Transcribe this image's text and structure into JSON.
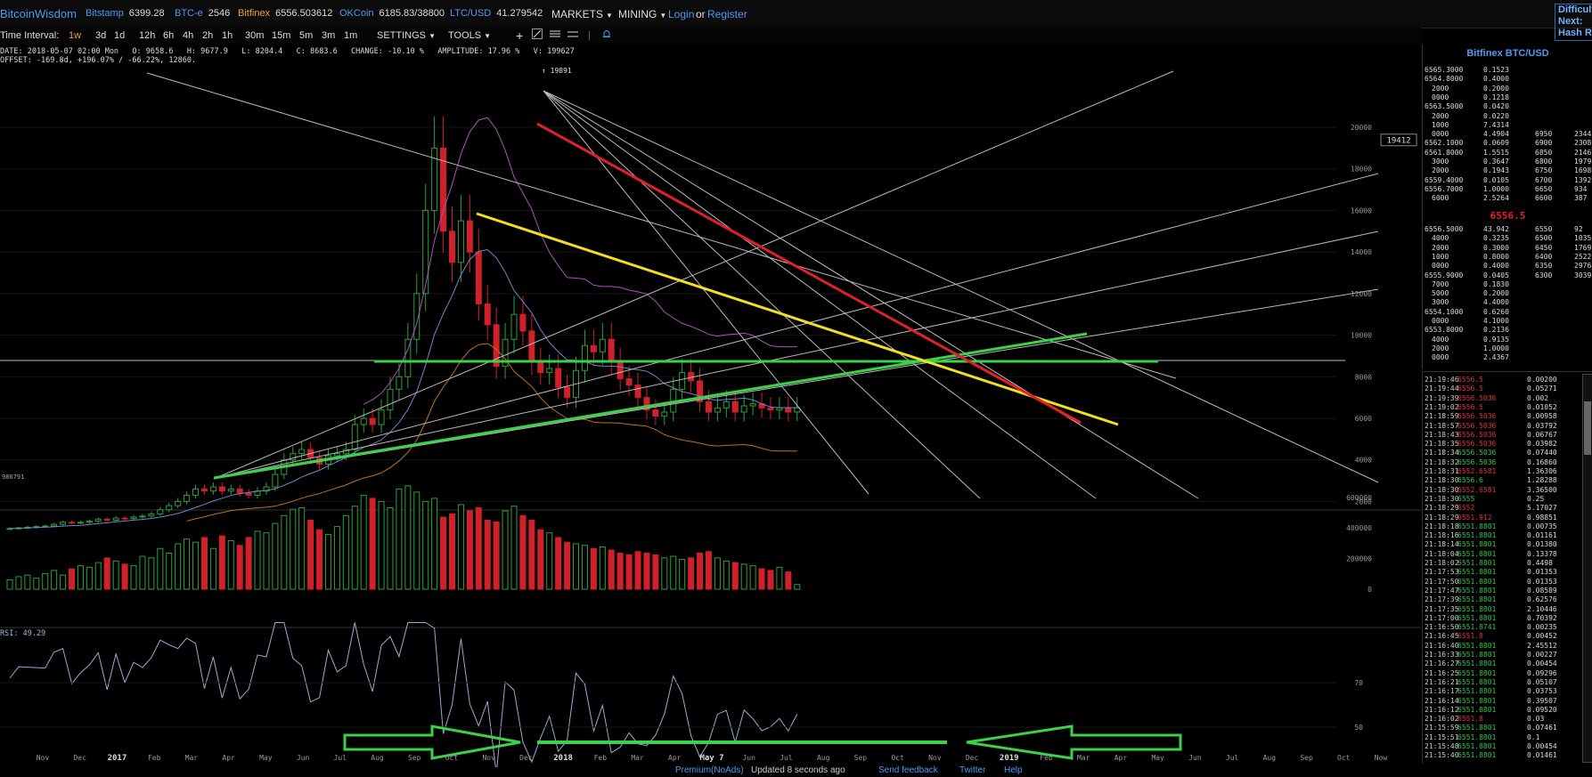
{
  "header": {
    "brand": "BitcoinWisdom",
    "tickers": [
      {
        "name": "Bitstamp",
        "value": "6399.28",
        "color": "blue"
      },
      {
        "name": "BTC-e",
        "value": "2546",
        "color": "blue"
      },
      {
        "name": "Bitfinex",
        "value": "6556.503612",
        "color": "orange"
      },
      {
        "name": "OKCoin",
        "value": "6185.83/38800",
        "color": "blue"
      },
      {
        "name": "LTC/USD",
        "value": "41.279542",
        "color": "blue"
      }
    ],
    "menus": [
      "MARKETS",
      "MINING"
    ],
    "login": "Login",
    "or": "or",
    "register": "Register",
    "difficulty": [
      "Difficulty",
      "Next:",
      "Hash Rate"
    ]
  },
  "toolbar": {
    "label": "Time Interval:",
    "intervals": [
      "1w",
      "3d",
      "1d",
      "12h",
      "6h",
      "4h",
      "2h",
      "1h",
      "30m",
      "15m",
      "5m",
      "3m",
      "1m"
    ],
    "active_interval": "1w",
    "settings": "SETTINGS",
    "tools": "TOOLS"
  },
  "ohlc": {
    "line1": "DATE: 2018-05-07 02:00 Mon   O: 9658.6   H: 9677.9   L: 8204.4   C: 8683.6   CHANGE: -10.10 %   AMPLITUDE: 17.96 %   V: 199627",
    "line2": "OFFSET: -169.8d, +196.07% / -66.22%, 12860."
  },
  "chart_data": {
    "type": "candlestick",
    "price_axis": {
      "ticks": [
        2000,
        4000,
        6000,
        8000,
        10000,
        12000,
        14000,
        16000,
        18000,
        20000
      ],
      "range": [
        0,
        20000
      ]
    },
    "peak_label": "19891",
    "cursor_price": "19412",
    "last_price_marker": "986791",
    "volume_axis": {
      "ticks": [
        0,
        200000,
        400000,
        600000
      ]
    },
    "rsi_label": "RSI: 49.29",
    "rsi_axis": {
      "ticks": [
        50,
        70
      ]
    },
    "time_labels": [
      "Nov",
      "Dec",
      "2017",
      "Feb",
      "Mar",
      "Apr",
      "May",
      "Jun",
      "Jul",
      "Aug",
      "Sep",
      "Oct",
      "Nov",
      "Dec",
      "2018",
      "Feb",
      "Mar",
      "Apr",
      "May 7",
      "Jun",
      "Jul",
      "Aug",
      "Sep",
      "Oct",
      "Nov",
      "Dec",
      "2019",
      "Feb",
      "Mar",
      "Apr",
      "May",
      "Jun",
      "Jul",
      "Aug",
      "Sep",
      "Oct",
      "Now"
    ],
    "weekly_closes": [
      700,
      730,
      760,
      790,
      820,
      900,
      1000,
      980,
      1000,
      1050,
      1150,
      1100,
      1200,
      1180,
      1250,
      1300,
      1400,
      1600,
      1800,
      2000,
      2300,
      2600,
      2500,
      2700,
      2500,
      2600,
      2400,
      2300,
      2500,
      2700,
      3300,
      4000,
      4300,
      4500,
      4100,
      3800,
      4200,
      4300,
      4500,
      5700,
      6000,
      5700,
      6400,
      7400,
      8000,
      9800,
      12000,
      16000,
      19000,
      15000,
      13500,
      15500,
      14000,
      11500,
      10500,
      8500,
      9800,
      11000,
      10200,
      8700,
      8200,
      8400,
      7500,
      7000,
      8300,
      9500,
      9200,
      9800,
      8700,
      7900,
      7600,
      7000,
      6400,
      6100,
      6300,
      7400,
      8200,
      7800,
      6800,
      6300,
      6500,
      6800,
      6300,
      6600,
      6700,
      6500,
      6400,
      6500,
      6300,
      6500
    ]
  },
  "orderbook": {
    "title": "Bitfinex BTC/USD",
    "asks": [
      [
        "6565.3000",
        "0.1523"
      ],
      [
        "6564.8000",
        "0.4000"
      ],
      [
        "2000",
        "0.2000"
      ],
      [
        "0000",
        "0.1218"
      ],
      [
        "6563.5000",
        "0.0420"
      ],
      [
        "2000",
        "0.0220"
      ],
      [
        "1000",
        "7.4314"
      ],
      [
        "0000",
        "4.4904"
      ],
      [
        "6562.1000",
        "0.0609"
      ],
      [
        "6561.8000",
        "1.5515"
      ],
      [
        "3000",
        "0.3647"
      ],
      [
        "2000",
        "0.1943"
      ],
      [
        "6559.4000",
        "0.0105"
      ],
      [
        "6556.7000",
        "1.0000"
      ],
      [
        "6000",
        "2.5264"
      ]
    ],
    "ask_depth": [
      [
        "6950",
        "2344"
      ],
      [
        "6900",
        "2308"
      ],
      [
        "6850",
        "2146"
      ],
      [
        "6800",
        "1979"
      ],
      [
        "6750",
        "1698"
      ],
      [
        "6700",
        "1392"
      ],
      [
        "6650",
        "934"
      ],
      [
        "6600",
        "387"
      ]
    ],
    "mid": "6556.5",
    "bids": [
      [
        "6556.5000",
        "43.942"
      ],
      [
        "4000",
        "0.3235"
      ],
      [
        "2000",
        "0.3000"
      ],
      [
        "1000",
        "0.8000"
      ],
      [
        "0000",
        "0.4000"
      ],
      [
        "6555.9000",
        "0.0405"
      ],
      [
        "7000",
        "0.1830"
      ],
      [
        "5000",
        "0.2000"
      ],
      [
        "3000",
        "4.4000"
      ],
      [
        "6554.1000",
        "0.6260"
      ],
      [
        "0000",
        "4.1000"
      ],
      [
        "6553.8000",
        "0.2136"
      ],
      [
        "4000",
        "0.9135"
      ],
      [
        "2000",
        "1.0000"
      ],
      [
        "0000",
        "2.4367"
      ]
    ],
    "bid_depth": [
      [
        "6550",
        "92"
      ],
      [
        "6500",
        "1035"
      ],
      [
        "6450",
        "1769"
      ],
      [
        "6400",
        "2522"
      ],
      [
        "6350",
        "2976"
      ],
      [
        "6300",
        "3039"
      ]
    ]
  },
  "trades": [
    [
      "21:19:46",
      "6556.5",
      "dn",
      "0.00200"
    ],
    [
      "21:19:44",
      "6556.5",
      "dn",
      "0.05271"
    ],
    [
      "21:19:39",
      "6556.5036",
      "dn",
      "0.002"
    ],
    [
      "21:19:02",
      "6556.5",
      "dn",
      "0.01052"
    ],
    [
      "21:18:59",
      "6556.5036",
      "dn",
      "0.00958"
    ],
    [
      "21:18:57",
      "6556.5036",
      "dn",
      "0.03792"
    ],
    [
      "21:18:43",
      "6556.5036",
      "dn",
      "0.06767"
    ],
    [
      "21:18:35",
      "6556.5036",
      "dn",
      "0.03982"
    ],
    [
      "21:18:34",
      "6556.5036",
      "up",
      "0.07440"
    ],
    [
      "21:18:32",
      "6556.5036",
      "up",
      "0.16860"
    ],
    [
      "21:18:31",
      "6552.6581",
      "dn",
      "1.36306"
    ],
    [
      "21:18:30",
      "6556.6",
      "up",
      "1.28288"
    ],
    [
      "21:18:30",
      "6552.6581",
      "dn",
      "3.36500"
    ],
    [
      "21:18:30",
      "6555",
      "up",
      "0.25"
    ],
    [
      "21:18:29",
      "6552",
      "dn",
      "5.17027"
    ],
    [
      "21:18:29",
      "6551.912",
      "dn",
      "0.98851"
    ],
    [
      "21:18:18",
      "6551.8801",
      "up",
      "0.00735"
    ],
    [
      "21:18:16",
      "6551.8801",
      "up",
      "0.01161"
    ],
    [
      "21:18:14",
      "6551.8801",
      "up",
      "0.01380"
    ],
    [
      "21:18:04",
      "6551.8801",
      "up",
      "0.13378"
    ],
    [
      "21:18:02",
      "6551.8801",
      "up",
      "0.4498"
    ],
    [
      "21:17:53",
      "6551.8801",
      "up",
      "0.01353"
    ],
    [
      "21:17:50",
      "6551.8801",
      "up",
      "0.01353"
    ],
    [
      "21:17:47",
      "6551.8801",
      "up",
      "0.08589"
    ],
    [
      "21:17:39",
      "6551.8801",
      "up",
      "0.62576"
    ],
    [
      "21:17:35",
      "6551.8801",
      "up",
      "2.10446"
    ],
    [
      "21:17:00",
      "6551.8801",
      "up",
      "0.70392"
    ],
    [
      "21:16:50",
      "6551.8741",
      "up",
      "0.00235"
    ],
    [
      "21:16:45",
      "6551.8",
      "dn",
      "0.00452"
    ],
    [
      "21:16:40",
      "6551.8801",
      "up",
      "2.45512"
    ],
    [
      "21:16:33",
      "6551.8801",
      "up",
      "0.00227"
    ],
    [
      "21:16:27",
      "6551.8801",
      "up",
      "0.00454"
    ],
    [
      "21:16:25",
      "6551.8801",
      "up",
      "0.09296"
    ],
    [
      "21:16:21",
      "6551.8801",
      "up",
      "0.05107"
    ],
    [
      "21:16:17",
      "6551.8801",
      "up",
      "0.03753"
    ],
    [
      "21:16:14",
      "6551.8801",
      "up",
      "0.39507"
    ],
    [
      "21:16:12",
      "6551.8801",
      "up",
      "0.09520"
    ],
    [
      "21:16:02",
      "6551.8",
      "dn",
      "0.03"
    ],
    [
      "21:15:59",
      "6551.8801",
      "up",
      "0.07461"
    ],
    [
      "21:15:51",
      "6551.8801",
      "up",
      "0.1"
    ],
    [
      "21:15:48",
      "6551.8801",
      "up",
      "0.00454"
    ],
    [
      "21:15:40",
      "6551.8801",
      "up",
      "0.01461"
    ]
  ],
  "footer": {
    "premium": "Premium(NoAds)",
    "updated": "Updated 8 seconds ago",
    "feedback": "Send feedback",
    "twitter": "Twitter",
    "help": "Help"
  }
}
